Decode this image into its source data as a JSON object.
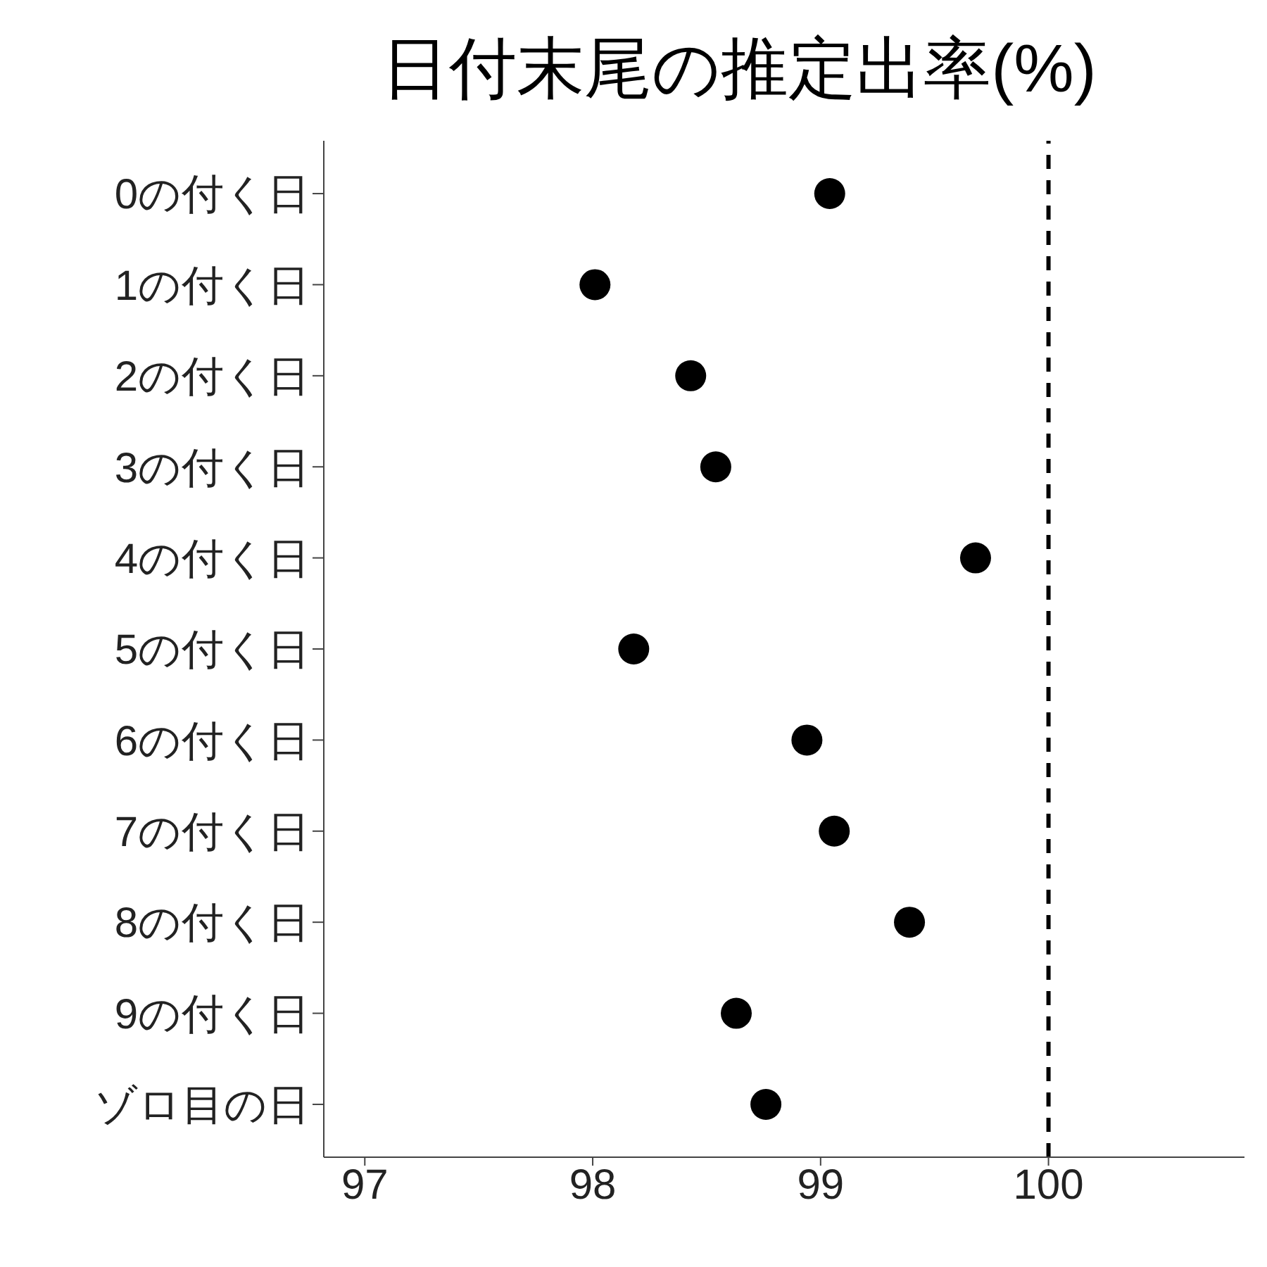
{
  "chart_data": {
    "type": "scatter",
    "title": "日付末尾の推定出率(%)",
    "orientation": "horizontal",
    "categories": [
      "0の付く日",
      "1の付く日",
      "2の付く日",
      "3の付く日",
      "4の付く日",
      "5の付く日",
      "6の付く日",
      "7の付く日",
      "8の付く日",
      "9の付く日",
      "ゾロ目の日"
    ],
    "values": [
      99.04,
      98.01,
      98.43,
      98.54,
      99.68,
      98.18,
      98.94,
      99.06,
      99.39,
      98.63,
      98.76
    ],
    "color": "#000000",
    "marker": "circle",
    "grid": false,
    "legend": false,
    "xlim": [
      96.82,
      100.86
    ],
    "xticks": [
      97,
      98,
      99,
      100
    ],
    "ref_lines": [
      {
        "axis": "x",
        "value": 100,
        "color": "#000000",
        "line_style": "dashed"
      }
    ]
  }
}
